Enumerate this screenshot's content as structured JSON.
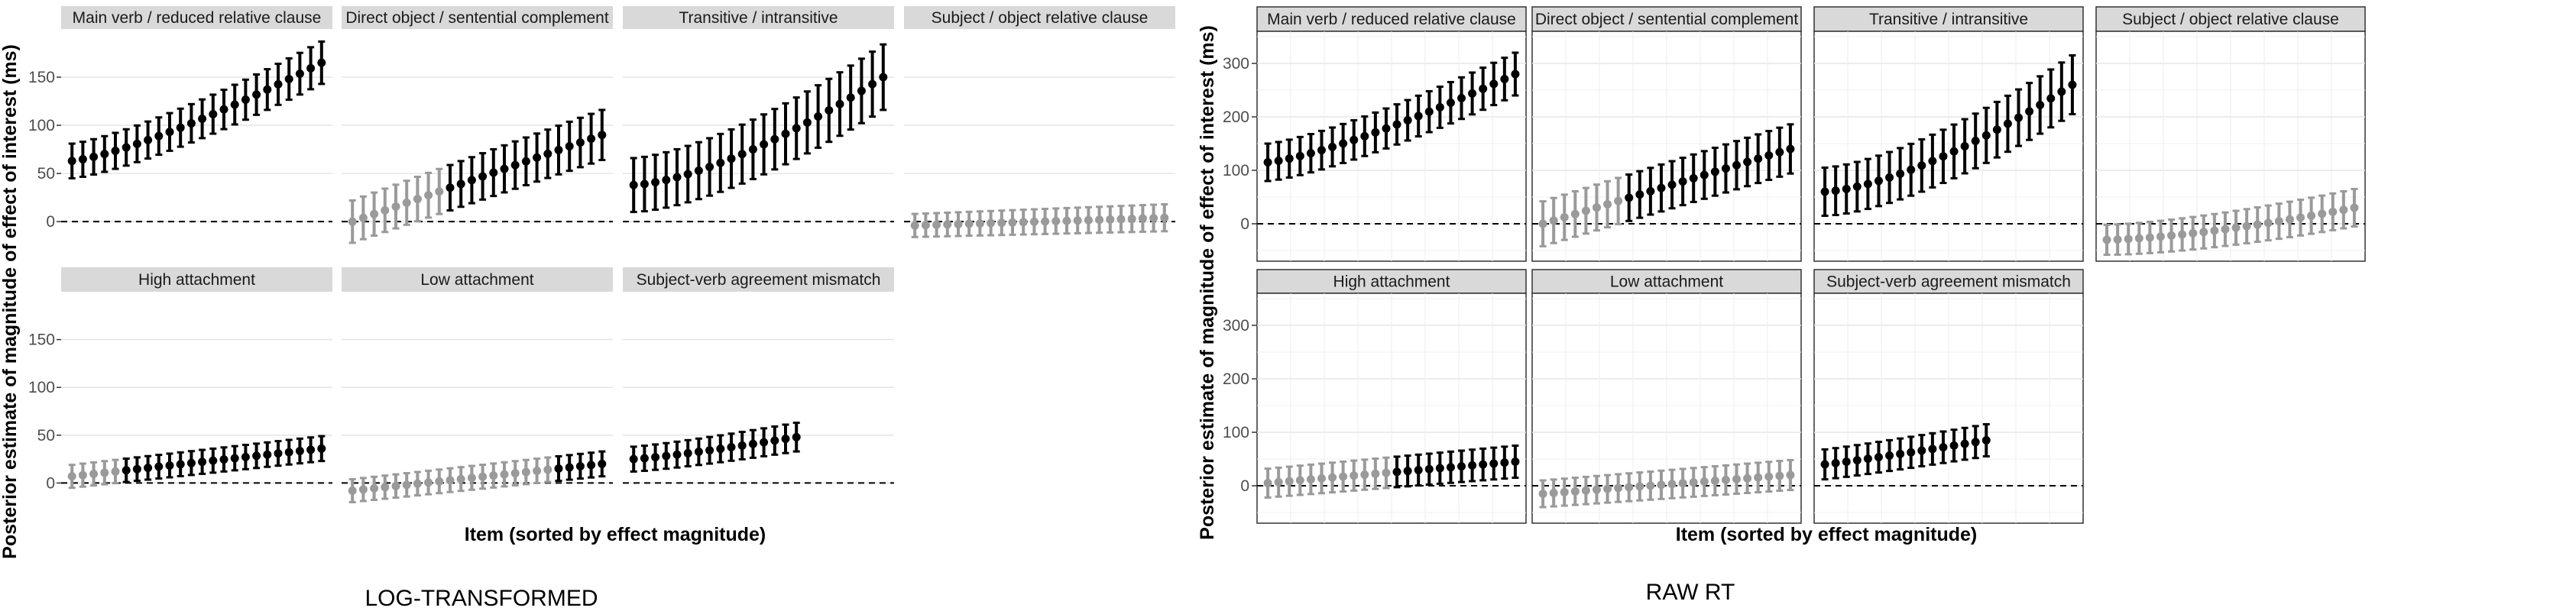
{
  "colors": {
    "significant": "#000000",
    "not_significant": "#9a9a9a",
    "strip_fill": "#d9d9d9",
    "grid": "#e6e6e6",
    "zero_line": "#000000"
  },
  "chart_data": [
    {
      "type": "errorbar-dot",
      "caption": "LOG-TRANSFORMED",
      "theme": "minimal",
      "xlabel": "Item (sorted by effect magnitude)",
      "ylabel": "Posterior estimate of magnitude of effect of interest (ms)",
      "ylim": [
        -30,
        200
      ],
      "yticks": [
        0,
        50,
        100,
        150
      ],
      "ytick_labels": [
        "0",
        "50",
        "100",
        "150"
      ],
      "facets": [
        {
          "title": "Main verb / reduced relative clause",
          "n": 24,
          "mean_range": [
            63,
            165
          ],
          "halfwidth_range": [
            18,
            22
          ],
          "curve": 1.3,
          "gray_count": 0
        },
        {
          "title": "Direct object / sentential complement",
          "n": 24,
          "mean_range": [
            0,
            90
          ],
          "halfwidth_range": [
            22,
            26
          ],
          "curve": 1.0,
          "gray_count": 9
        },
        {
          "title": "Transitive / intransitive",
          "n": 24,
          "mean_range": [
            38,
            150
          ],
          "halfwidth_range": [
            28,
            34
          ],
          "curve": 1.5,
          "gray_count": 0
        },
        {
          "title": "Subject / object relative clause",
          "n": 24,
          "mean_range": [
            -4,
            4
          ],
          "halfwidth_range": [
            12,
            14
          ],
          "curve": 1.0,
          "gray_count": 24
        },
        {
          "title": "High attachment",
          "n": 24,
          "mean_range": [
            7,
            36
          ],
          "halfwidth_range": [
            12,
            13
          ],
          "curve": 1.0,
          "gray_count": 5
        },
        {
          "title": "Low attachment",
          "n": 24,
          "mean_range": [
            -8,
            20
          ],
          "halfwidth_range": [
            12,
            13
          ],
          "curve": 1.0,
          "gray_count": 19
        },
        {
          "title": "Subject-verb agreement mismatch",
          "n": 16,
          "mean_range": [
            25,
            48
          ],
          "halfwidth_range": [
            13,
            15
          ],
          "curve": 1.2,
          "gray_count": 0
        }
      ]
    },
    {
      "type": "errorbar-dot",
      "caption": "RAW RT",
      "theme": "bw",
      "xlabel": "Item (sorted by effect magnitude)",
      "ylabel": "Posterior estimate of magnitude of effect of interest (ms)",
      "ylim": [
        -70,
        360
      ],
      "yticks": [
        0,
        100,
        200,
        300
      ],
      "ytick_labels": [
        "0",
        "100",
        "200",
        "300"
      ],
      "facets": [
        {
          "title": "Main verb / reduced relative clause",
          "n": 24,
          "mean_range": [
            115,
            280
          ],
          "halfwidth_range": [
            35,
            40
          ],
          "curve": 1.3,
          "gray_count": 0
        },
        {
          "title": "Direct object / sentential complement",
          "n": 24,
          "mean_range": [
            0,
            140
          ],
          "halfwidth_range": [
            42,
            46
          ],
          "curve": 1.0,
          "gray_count": 8
        },
        {
          "title": "Transitive / intransitive",
          "n": 24,
          "mean_range": [
            60,
            260
          ],
          "halfwidth_range": [
            45,
            55
          ],
          "curve": 1.5,
          "gray_count": 0
        },
        {
          "title": "Subject / object relative clause",
          "n": 24,
          "mean_range": [
            -30,
            30
          ],
          "halfwidth_range": [
            28,
            35
          ],
          "curve": 1.5,
          "gray_count": 24
        },
        {
          "title": "High attachment",
          "n": 24,
          "mean_range": [
            5,
            45
          ],
          "halfwidth_range": [
            27,
            30
          ],
          "curve": 1.0,
          "gray_count": 12
        },
        {
          "title": "Low attachment",
          "n": 24,
          "mean_range": [
            -15,
            20
          ],
          "halfwidth_range": [
            25,
            28
          ],
          "curve": 1.0,
          "gray_count": 24
        },
        {
          "title": "Subject-verb agreement mismatch",
          "n": 16,
          "mean_range": [
            40,
            85
          ],
          "halfwidth_range": [
            28,
            30
          ],
          "curve": 1.1,
          "gray_count": 0
        }
      ]
    }
  ]
}
